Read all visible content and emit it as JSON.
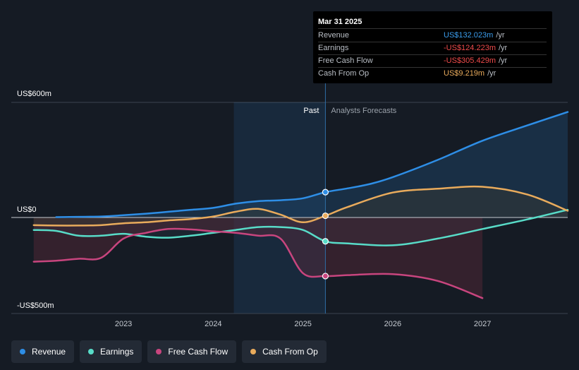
{
  "tooltip": {
    "date": "Mar 31 2025",
    "rows": [
      {
        "label": "Revenue",
        "value": "US$132.023m",
        "unit": "/yr",
        "color": "#3b9ded"
      },
      {
        "label": "Earnings",
        "value": "-US$124.223m",
        "unit": "/yr",
        "color": "#ef4b4b"
      },
      {
        "label": "Free Cash Flow",
        "value": "-US$305.429m",
        "unit": "/yr",
        "color": "#ef4b4b"
      },
      {
        "label": "Cash From Op",
        "value": "US$9.219m",
        "unit": "/yr",
        "color": "#e9ab5c"
      }
    ]
  },
  "legend": [
    {
      "label": "Revenue",
      "color": "#2e8ee6"
    },
    {
      "label": "Earnings",
      "color": "#58dcc8"
    },
    {
      "label": "Free Cash Flow",
      "color": "#c8457e"
    },
    {
      "label": "Cash From Op",
      "color": "#e9ab5c"
    }
  ],
  "chart_data": {
    "type": "line",
    "title": "",
    "xlabel": "",
    "ylabel": "",
    "ylim": [
      -500,
      600
    ],
    "y_ticks": [
      {
        "value": 600,
        "label": "US$600m"
      },
      {
        "value": 0,
        "label": "US$0"
      },
      {
        "value": -500,
        "label": "-US$500m"
      }
    ],
    "x_ticks": [
      {
        "value": 2023,
        "label": "2023"
      },
      {
        "value": 2024,
        "label": "2024"
      },
      {
        "value": 2025,
        "label": "2025"
      },
      {
        "value": 2026,
        "label": "2026"
      },
      {
        "value": 2027,
        "label": "2027"
      }
    ],
    "xlim": [
      2021.75,
      2027.95
    ],
    "past_label": "Past",
    "forecast_label": "Analysts Forecasts",
    "highlight_start": 2024.23,
    "divider_x": 2025.25,
    "series": [
      {
        "name": "Revenue",
        "color": "#2e8ee6",
        "points": [
          [
            2022.25,
            2
          ],
          [
            2022.75,
            5
          ],
          [
            2023.0,
            12
          ],
          [
            2023.25,
            20
          ],
          [
            2023.5,
            30
          ],
          [
            2023.75,
            40
          ],
          [
            2024.0,
            50
          ],
          [
            2024.25,
            72
          ],
          [
            2024.5,
            85
          ],
          [
            2024.75,
            90
          ],
          [
            2025.0,
            100
          ],
          [
            2025.25,
            132
          ],
          [
            2025.5,
            152
          ],
          [
            2025.75,
            175
          ],
          [
            2026.0,
            210
          ],
          [
            2026.5,
            300
          ],
          [
            2027.0,
            400
          ],
          [
            2027.5,
            480
          ],
          [
            2027.95,
            550
          ]
        ]
      },
      {
        "name": "Earnings",
        "color": "#58dcc8",
        "points": [
          [
            2022.0,
            -65
          ],
          [
            2022.25,
            -70
          ],
          [
            2022.5,
            -95
          ],
          [
            2022.75,
            -95
          ],
          [
            2023.0,
            -85
          ],
          [
            2023.25,
            -100
          ],
          [
            2023.5,
            -105
          ],
          [
            2023.75,
            -95
          ],
          [
            2024.0,
            -80
          ],
          [
            2024.25,
            -65
          ],
          [
            2024.5,
            -50
          ],
          [
            2024.75,
            -50
          ],
          [
            2025.0,
            -65
          ],
          [
            2025.25,
            -124
          ],
          [
            2025.5,
            -135
          ],
          [
            2026.0,
            -145
          ],
          [
            2026.5,
            -110
          ],
          [
            2027.0,
            -60
          ],
          [
            2027.5,
            -10
          ],
          [
            2027.95,
            40
          ]
        ]
      },
      {
        "name": "Free Cash Flow",
        "color": "#c8457e",
        "points": [
          [
            2022.0,
            -230
          ],
          [
            2022.25,
            -225
          ],
          [
            2022.5,
            -215
          ],
          [
            2022.75,
            -210
          ],
          [
            2023.0,
            -110
          ],
          [
            2023.25,
            -80
          ],
          [
            2023.5,
            -60
          ],
          [
            2023.75,
            -62
          ],
          [
            2024.0,
            -72
          ],
          [
            2024.25,
            -80
          ],
          [
            2024.5,
            -95
          ],
          [
            2024.75,
            -110
          ],
          [
            2025.0,
            -290
          ],
          [
            2025.25,
            -305
          ],
          [
            2025.5,
            -300
          ],
          [
            2026.0,
            -295
          ],
          [
            2026.5,
            -330
          ],
          [
            2027.0,
            -420
          ]
        ]
      },
      {
        "name": "Cash From Op",
        "color": "#e9ab5c",
        "points": [
          [
            2022.0,
            -40
          ],
          [
            2022.25,
            -42
          ],
          [
            2022.5,
            -42
          ],
          [
            2022.75,
            -40
          ],
          [
            2023.0,
            -30
          ],
          [
            2023.25,
            -25
          ],
          [
            2023.5,
            -15
          ],
          [
            2023.75,
            -8
          ],
          [
            2024.0,
            5
          ],
          [
            2024.25,
            30
          ],
          [
            2024.5,
            45
          ],
          [
            2024.75,
            15
          ],
          [
            2025.0,
            -25
          ],
          [
            2025.25,
            9
          ],
          [
            2025.5,
            55
          ],
          [
            2026.0,
            130
          ],
          [
            2026.5,
            150
          ],
          [
            2027.0,
            160
          ],
          [
            2027.5,
            120
          ],
          [
            2027.95,
            35
          ]
        ]
      }
    ]
  }
}
